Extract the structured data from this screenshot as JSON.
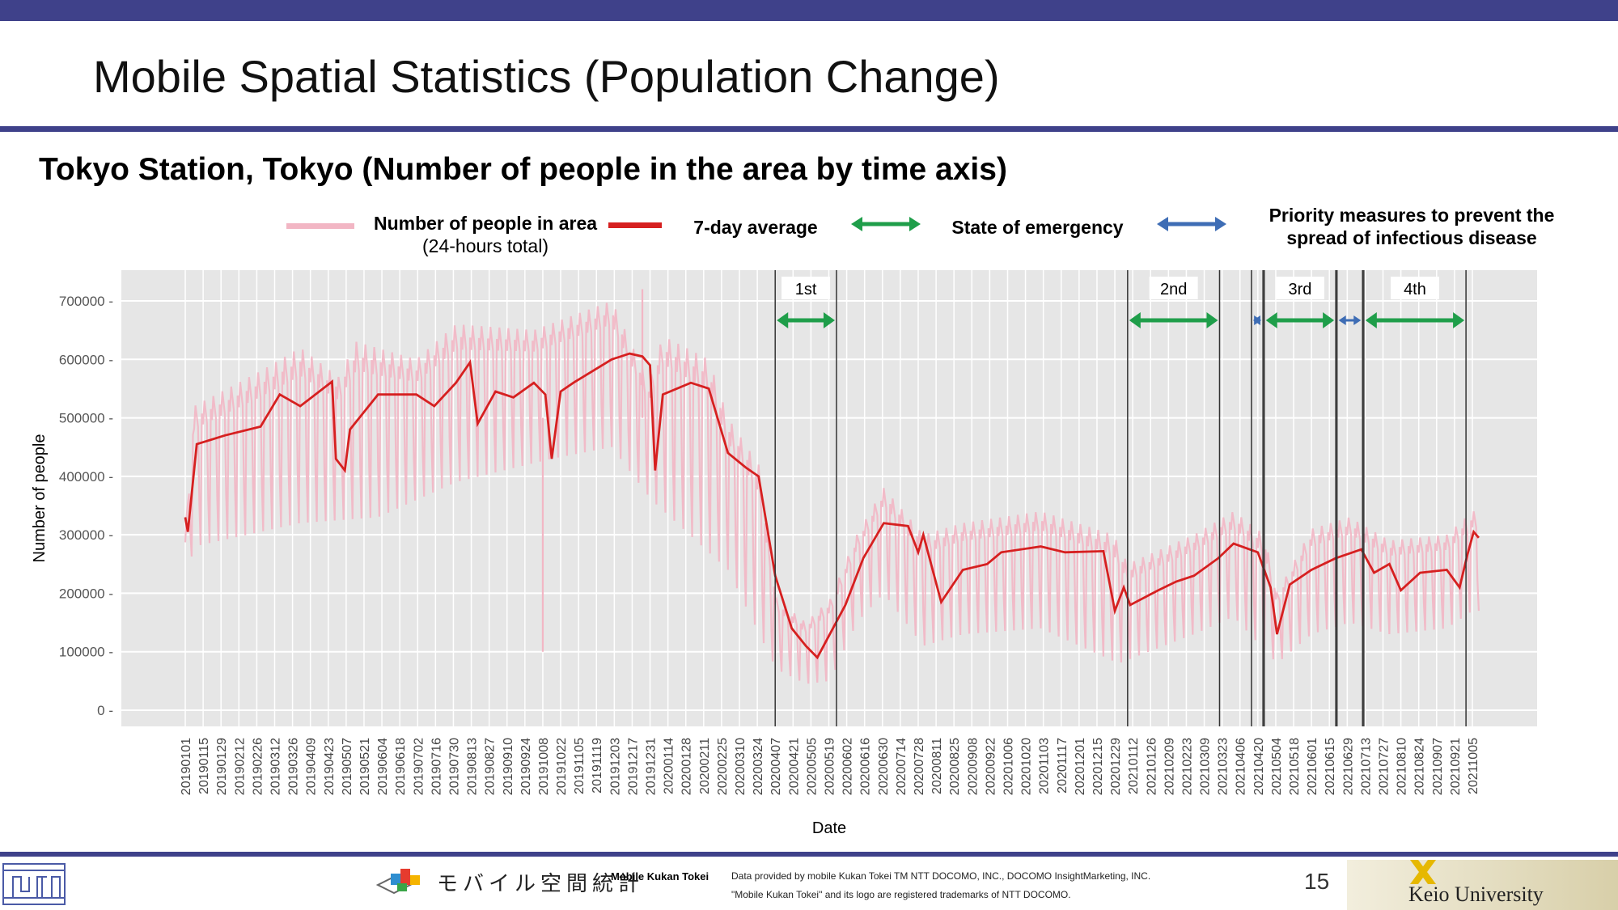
{
  "header": {
    "title": "Mobile Spatial Statistics (Population Change)",
    "subtitle": "Tokyo Station, Tokyo (Number of people in the area by time axis)"
  },
  "legend": {
    "daily_line1": "Number of people in area",
    "daily_line2": "(24-hours total)",
    "avg": "7-day average",
    "emergency": "State of emergency",
    "priority_line1": "Priority measures to prevent the",
    "priority_line2": "spread of infectious disease",
    "colors": {
      "daily": "#f2b6c4",
      "avg": "#d62020",
      "emergency": "#1f9e4a",
      "priority": "#3e6db5"
    }
  },
  "chart_data": {
    "type": "line",
    "xlabel": "Date",
    "ylabel": "Number of people",
    "ylim": [
      0,
      700000
    ],
    "yticks": [
      0,
      100000,
      200000,
      300000,
      400000,
      500000,
      600000,
      700000
    ],
    "xticks": [
      "20190101",
      "20190115",
      "20190129",
      "20190212",
      "20190226",
      "20190312",
      "20190326",
      "20190409",
      "20190423",
      "20190507",
      "20190521",
      "20190604",
      "20190618",
      "20190702",
      "20190716",
      "20190730",
      "20190813",
      "20190827",
      "20190910",
      "20190924",
      "20191008",
      "20191022",
      "20191105",
      "20191119",
      "20191203",
      "20191217",
      "20191231",
      "20200114",
      "20200128",
      "20200211",
      "20200225",
      "20200310",
      "20200324",
      "20200407",
      "20200421",
      "20200505",
      "20200519",
      "20200602",
      "20200616",
      "20200630",
      "20200714",
      "20200728",
      "20200811",
      "20200825",
      "20200908",
      "20200922",
      "20201006",
      "20201020",
      "20201103",
      "20201117",
      "20201201",
      "20201215",
      "20201229",
      "20210112",
      "20210126",
      "20210209",
      "20210223",
      "20210309",
      "20210323",
      "20210406",
      "20210420",
      "20210504",
      "20210518",
      "20210601",
      "20210615",
      "20210629",
      "20210713",
      "20210727",
      "20210810",
      "20210824",
      "20210907",
      "20210921",
      "20211005"
    ],
    "x_start": "20190101",
    "x_end": "20211010",
    "grid": true,
    "series": [
      {
        "name": "Number of people in area",
        "weekday_max": [
          [
            "20190101",
            300000
          ],
          [
            "20190108",
            520000
          ],
          [
            "20190301",
            580000
          ],
          [
            "20190401",
            620000
          ],
          [
            "20190501",
            570000
          ],
          [
            "20190515",
            630000
          ],
          [
            "20190701",
            600000
          ],
          [
            "20190801",
            660000
          ],
          [
            "20191001",
            650000
          ],
          [
            "20191201",
            700000
          ],
          [
            "20191230",
            560000
          ],
          [
            "20200110",
            640000
          ],
          [
            "20200215",
            600000
          ],
          [
            "20200301",
            500000
          ],
          [
            "20200325",
            420000
          ],
          [
            "20200408",
            190000
          ],
          [
            "20200501",
            150000
          ],
          [
            "20200520",
            190000
          ],
          [
            "20200610",
            300000
          ],
          [
            "20200701",
            380000
          ],
          [
            "20200801",
            300000
          ],
          [
            "20200901",
            320000
          ],
          [
            "20201101",
            340000
          ],
          [
            "20201228",
            300000
          ],
          [
            "20210108",
            250000
          ],
          [
            "20210301",
            300000
          ],
          [
            "20210401",
            340000
          ],
          [
            "20210425",
            300000
          ],
          [
            "20210505",
            200000
          ],
          [
            "20210601",
            310000
          ],
          [
            "20210701",
            330000
          ],
          [
            "20210801",
            290000
          ],
          [
            "20210915",
            300000
          ],
          [
            "20211005",
            340000
          ]
        ],
        "weekend_min": [
          [
            "20190101",
            220000
          ],
          [
            "20190108",
            280000
          ],
          [
            "20190401",
            320000
          ],
          [
            "20190601",
            330000
          ],
          [
            "20190801",
            390000
          ],
          [
            "20191015",
            430000
          ],
          [
            "20191201",
            450000
          ],
          [
            "20200101",
            360000
          ],
          [
            "20200301",
            240000
          ],
          [
            "20200408",
            70000
          ],
          [
            "20200501",
            45000
          ],
          [
            "20200520",
            50000
          ],
          [
            "20200610",
            150000
          ],
          [
            "20200701",
            200000
          ],
          [
            "20200801",
            110000
          ],
          [
            "20200901",
            130000
          ],
          [
            "20201101",
            140000
          ],
          [
            "20210101",
            80000
          ],
          [
            "20210301",
            130000
          ],
          [
            "20210401",
            160000
          ],
          [
            "20210505",
            80000
          ],
          [
            "20210601",
            130000
          ],
          [
            "20210701",
            150000
          ],
          [
            "20210801",
            130000
          ],
          [
            "20210915",
            140000
          ],
          [
            "20211005",
            170000
          ]
        ],
        "spikes": [
          [
            "20191008",
            100000
          ],
          [
            "20191225",
            720000
          ]
        ]
      },
      {
        "name": "7-day average",
        "points": [
          [
            "20190101",
            330000
          ],
          [
            "20190103",
            305000
          ],
          [
            "20190110",
            455000
          ],
          [
            "20190201",
            470000
          ],
          [
            "20190301",
            485000
          ],
          [
            "20190316",
            540000
          ],
          [
            "20190401",
            520000
          ],
          [
            "20190426",
            562000
          ],
          [
            "20190429",
            430000
          ],
          [
            "20190506",
            410000
          ],
          [
            "20190510",
            480000
          ],
          [
            "20190601",
            540000
          ],
          [
            "20190701",
            540000
          ],
          [
            "20190715",
            520000
          ],
          [
            "20190801",
            560000
          ],
          [
            "20190812",
            595000
          ],
          [
            "20190818",
            490000
          ],
          [
            "20190901",
            545000
          ],
          [
            "20190915",
            535000
          ],
          [
            "20191001",
            560000
          ],
          [
            "20191010",
            540000
          ],
          [
            "20191015",
            430000
          ],
          [
            "20191022",
            545000
          ],
          [
            "20191101",
            560000
          ],
          [
            "20191201",
            600000
          ],
          [
            "20191215",
            610000
          ],
          [
            "20191225",
            605000
          ],
          [
            "20191231",
            590000
          ],
          [
            "20200104",
            410000
          ],
          [
            "20200110",
            540000
          ],
          [
            "20200201",
            560000
          ],
          [
            "20200215",
            550000
          ],
          [
            "20200301",
            440000
          ],
          [
            "20200315",
            415000
          ],
          [
            "20200325",
            400000
          ],
          [
            "20200407",
            230000
          ],
          [
            "20200420",
            140000
          ],
          [
            "20200501",
            110000
          ],
          [
            "20200510",
            90000
          ],
          [
            "20200601",
            180000
          ],
          [
            "20200615",
            260000
          ],
          [
            "20200701",
            320000
          ],
          [
            "20200720",
            315000
          ],
          [
            "20200728",
            270000
          ],
          [
            "20200801",
            300000
          ],
          [
            "20200815",
            185000
          ],
          [
            "20200901",
            240000
          ],
          [
            "20200920",
            250000
          ],
          [
            "20201001",
            270000
          ],
          [
            "20201101",
            280000
          ],
          [
            "20201120",
            270000
          ],
          [
            "20201220",
            272000
          ],
          [
            "20201229",
            170000
          ],
          [
            "20210105",
            210000
          ],
          [
            "20210110",
            180000
          ],
          [
            "20210201",
            205000
          ],
          [
            "20210215",
            220000
          ],
          [
            "20210301",
            230000
          ],
          [
            "20210320",
            260000
          ],
          [
            "20210401",
            285000
          ],
          [
            "20210420",
            270000
          ],
          [
            "20210430",
            210000
          ],
          [
            "20210505",
            130000
          ],
          [
            "20210515",
            215000
          ],
          [
            "20210601",
            240000
          ],
          [
            "20210620",
            260000
          ],
          [
            "20210710",
            275000
          ],
          [
            "20210720",
            235000
          ],
          [
            "20210801",
            250000
          ],
          [
            "20210810",
            205000
          ],
          [
            "20210825",
            235000
          ],
          [
            "20210915",
            240000
          ],
          [
            "20210925",
            210000
          ],
          [
            "20211001",
            265000
          ],
          [
            "20211006",
            305000
          ],
          [
            "20211010",
            295000
          ]
        ]
      }
    ],
    "periods": [
      {
        "label": "1st",
        "type": "State of emergency",
        "start": "20200407",
        "end": "20200525"
      },
      {
        "label": "2nd",
        "type": "State of emergency",
        "start": "20210108",
        "end": "20210321"
      },
      {
        "label": "",
        "type": "Priority measures",
        "start": "20210415",
        "end": "20210424"
      },
      {
        "label": "3rd",
        "type": "State of emergency",
        "start": "20210425",
        "end": "20210620"
      },
      {
        "label": "",
        "type": "Priority measures",
        "start": "20210621",
        "end": "20210711"
      },
      {
        "label": "4th",
        "type": "State of emergency",
        "start": "20210712",
        "end": "20210930"
      }
    ]
  },
  "footer": {
    "mk_jp": "モバイル空間統計",
    "mk_en": "Mobile Kukan Tokei",
    "note1": "Data provided by mobile Kukan Tokei TM NTT DOCOMO, INC., DOCOMO InsightMarketing, INC.",
    "note2": "\"Mobile Kukan Tokei\" and its logo are registered trademarks of NTT DOCOMO.",
    "page_number": "15",
    "university": "Keio University"
  }
}
